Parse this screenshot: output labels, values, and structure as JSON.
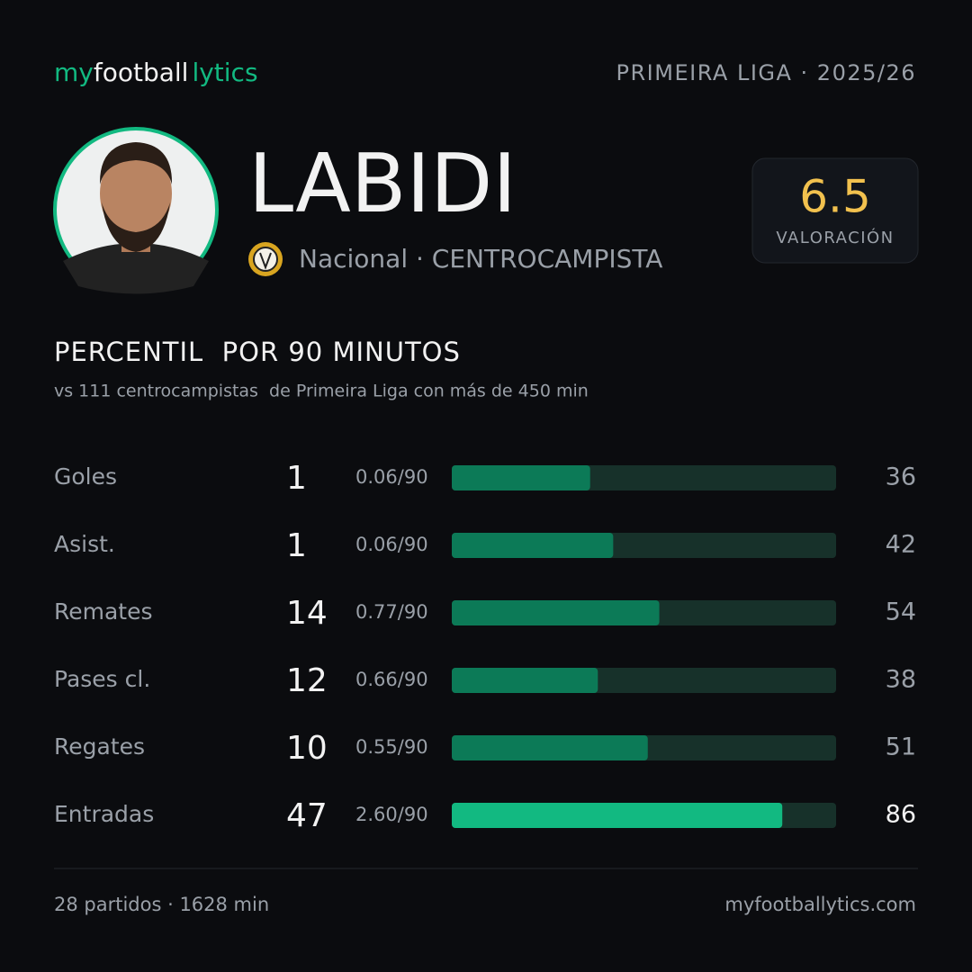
{
  "logo": {
    "part1": "my",
    "part2": "football",
    "part3": "lytics"
  },
  "competition": "PRIMEIRA LIGA · 2025/26",
  "player": {
    "name": "LABIDI",
    "meta": "Nacional · CENTROCAMPISTA"
  },
  "rating": {
    "value": "6.5",
    "label": "VALORACIÓN"
  },
  "section": {
    "title": "PERCENTIL  POR 90 MINUTOS",
    "subtitle": "vs 111 centrocampistas  de Primeira Liga con más de 450 min"
  },
  "xlim": [
    0,
    100
  ],
  "rows": [
    {
      "label": "Goles",
      "total": 1,
      "per90": "0.06/90",
      "percentile": 36,
      "color": "#0c7a57"
    },
    {
      "label": "Asist.",
      "total": 1,
      "per90": "0.06/90",
      "percentile": 42,
      "color": "#0c7a57"
    },
    {
      "label": "Remates",
      "total": 14,
      "per90": "0.77/90",
      "percentile": 54,
      "color": "#0c7a57"
    },
    {
      "label": "Pases cl.",
      "total": 12,
      "per90": "0.66/90",
      "percentile": 38,
      "color": "#0c7a57"
    },
    {
      "label": "Regates",
      "total": 10,
      "per90": "0.55/90",
      "percentile": 51,
      "color": "#0c7a57"
    },
    {
      "label": "Entradas",
      "total": 47,
      "per90": "2.60/90",
      "percentile": 86,
      "color": "#12b981"
    }
  ],
  "footer": {
    "left": "28 partidos · 1628 min",
    "right": "myfootballytics.com"
  }
}
